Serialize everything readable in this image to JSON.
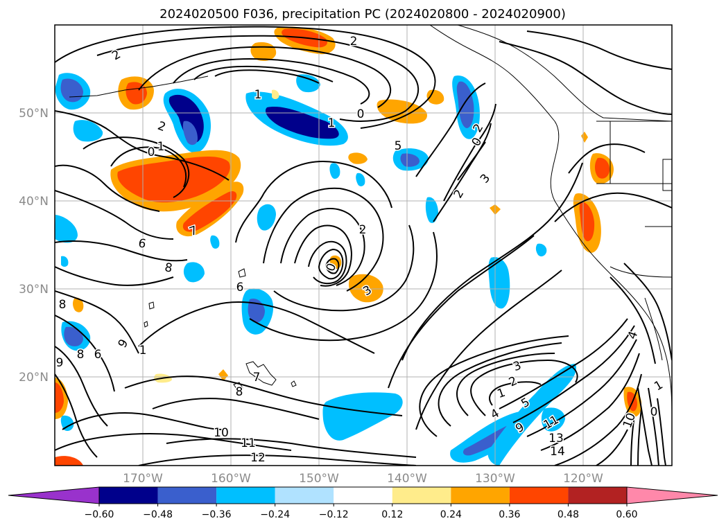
{
  "title": "2024020500 F036, precipitation PC (2024020800 - 2024020900)",
  "latitude_labels": [
    "50°N",
    "40°N",
    "30°N",
    "20°N"
  ],
  "longitude_labels": [
    "170°W",
    "160°W",
    "150°W",
    "140°W",
    "130°W",
    "120°W"
  ],
  "colorbar": {
    "tick_labels": [
      "−0.60",
      "−0.48",
      "−0.36",
      "−0.24",
      "−0.12",
      "0.12",
      "0.24",
      "0.36",
      "0.48",
      "0.60"
    ],
    "colors": [
      "#9932cc",
      "#00008b",
      "#3a5fcd",
      "#00bfff",
      "#b0e2ff",
      "#ffffff",
      "#ffec8b",
      "#ffa500",
      "#ff4500",
      "#b22222",
      "#ff88aa"
    ]
  },
  "contour_labels": [
    "2",
    "2",
    "1",
    "2",
    "1",
    "0",
    "1",
    "0",
    "5",
    "2",
    "0",
    "3",
    "2",
    "7",
    "6",
    "8",
    "6",
    "2",
    "0",
    "3",
    "8",
    "9",
    "1",
    "6",
    "8",
    "9",
    "7",
    "8",
    "10",
    "11",
    "12",
    "3",
    "2",
    "1",
    "4",
    "5",
    "9",
    "11",
    "13",
    "14",
    "4",
    "10",
    "0",
    "1"
  ],
  "colors": {
    "grid": "#b0b0b0",
    "contour": "#000000",
    "tick_text": "#8a8a8a"
  }
}
